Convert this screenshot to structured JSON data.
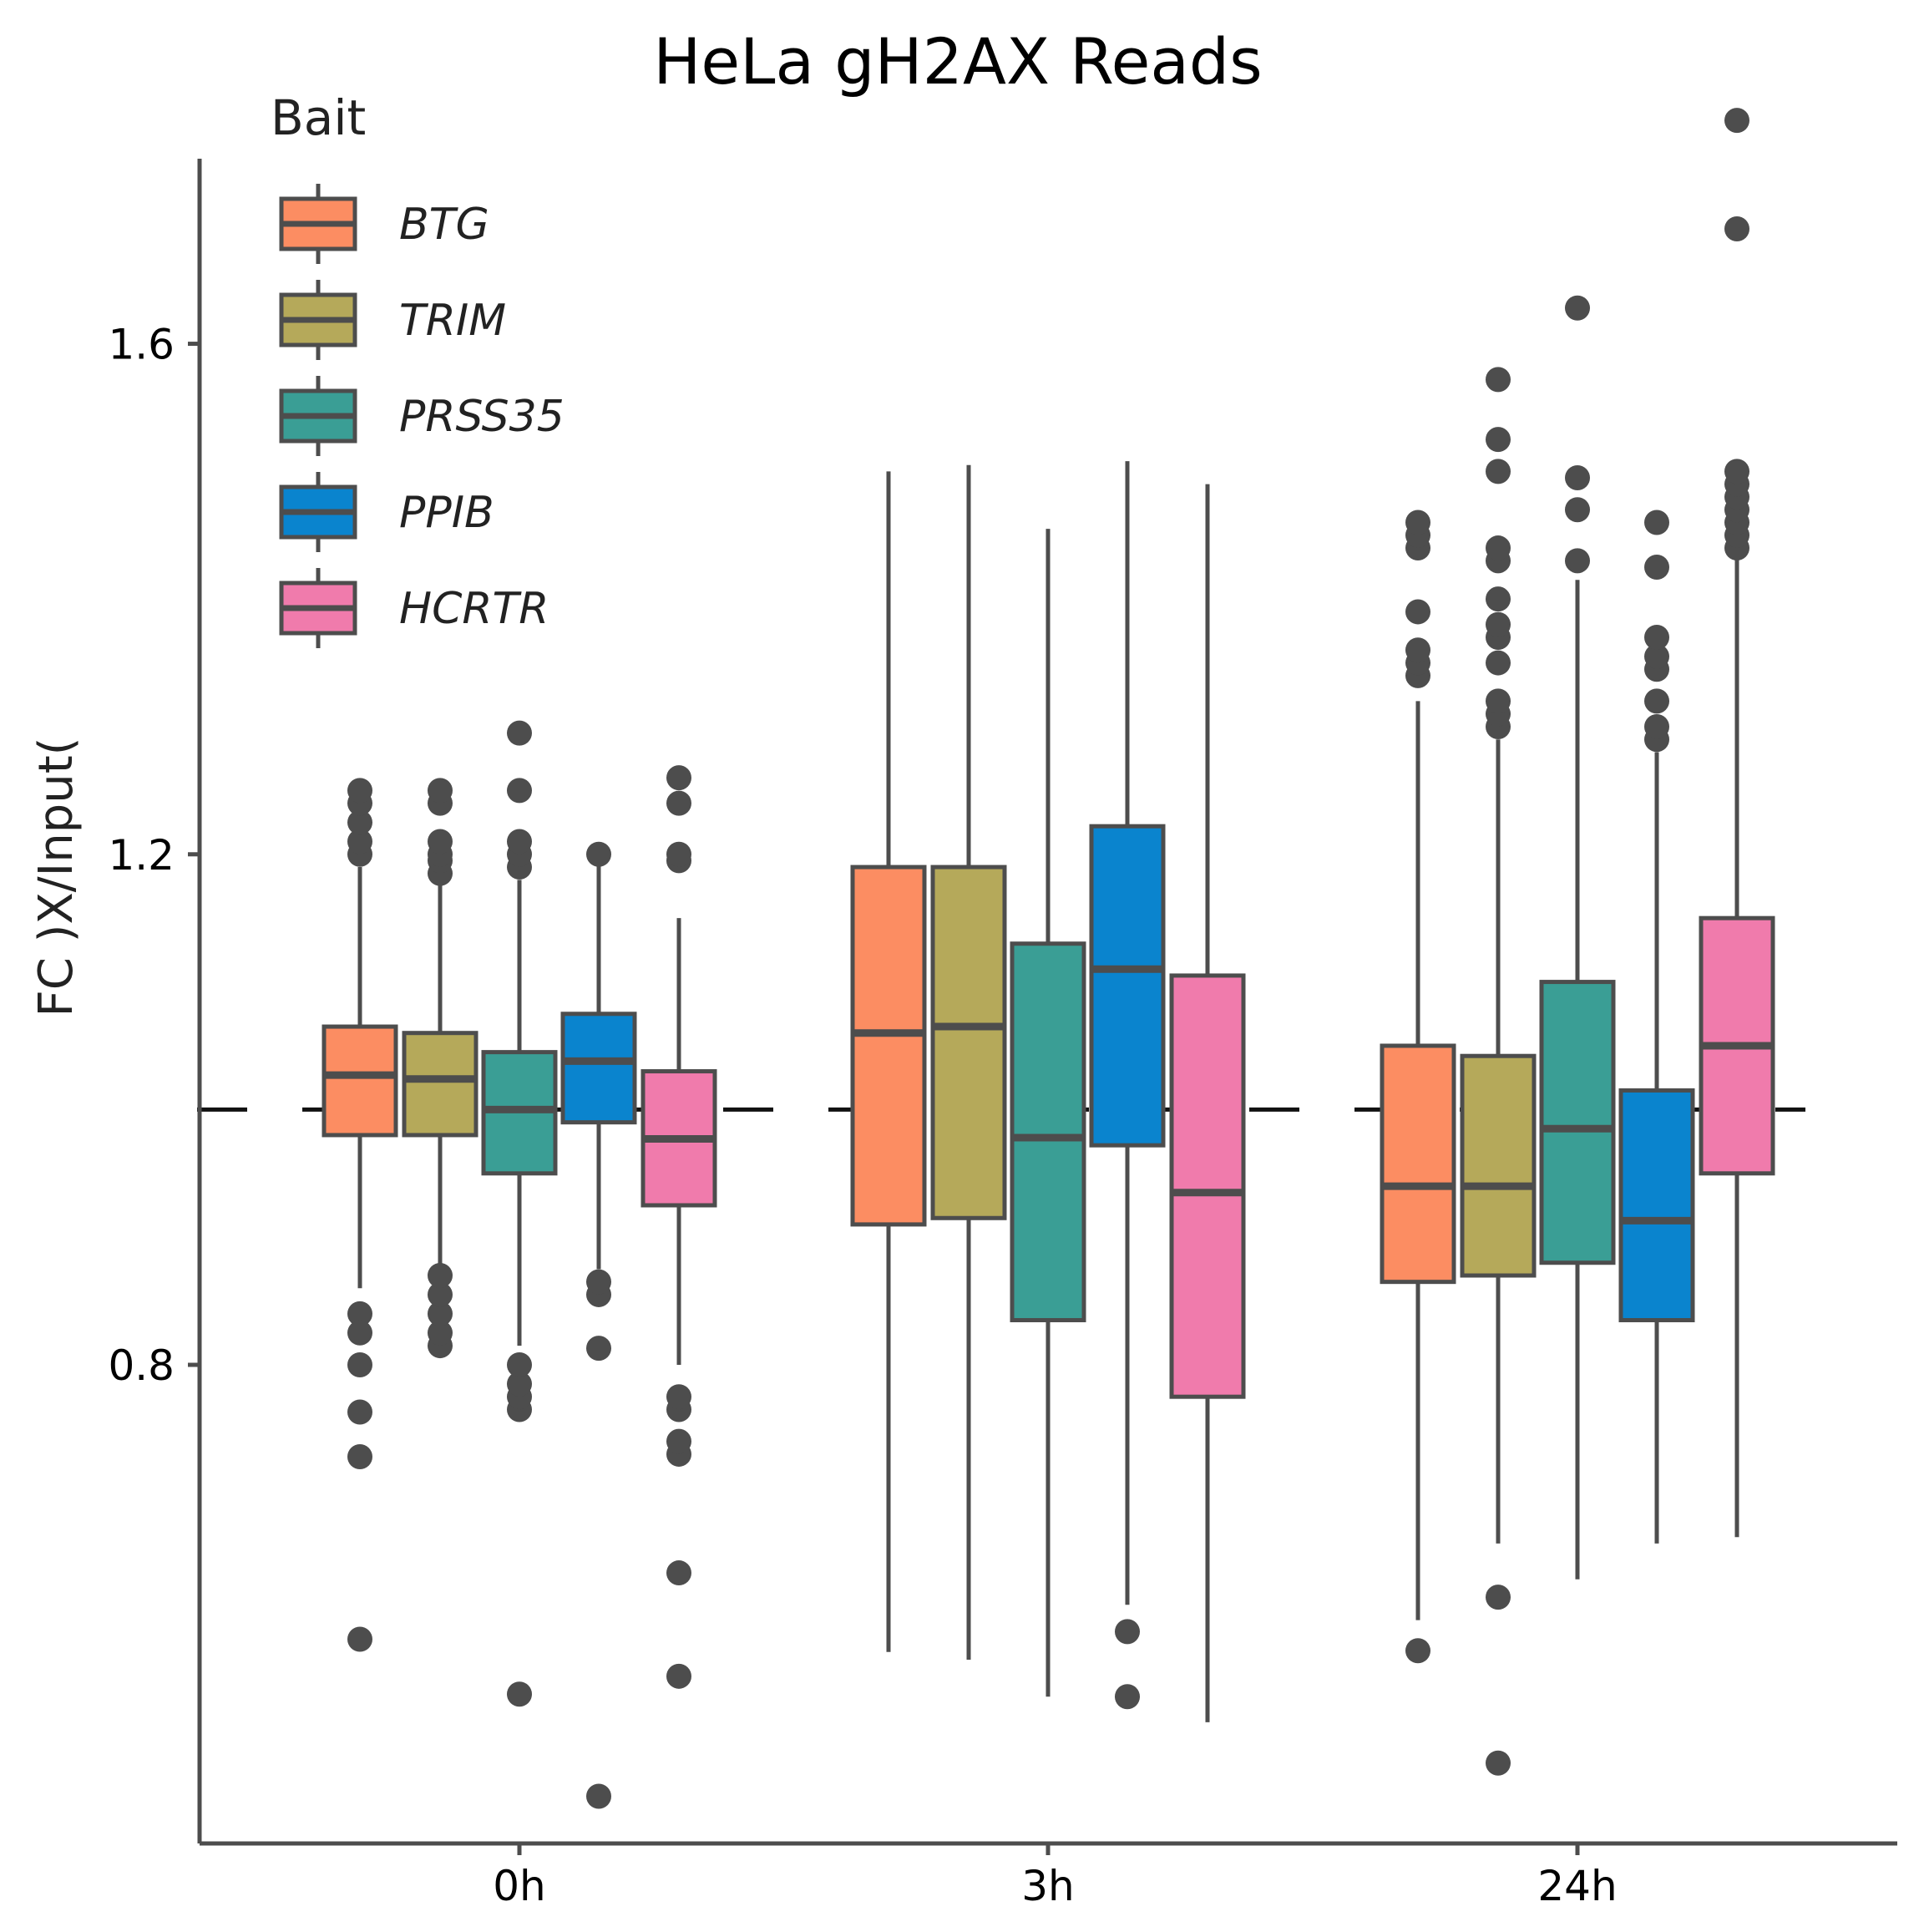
{
  "chart_data": {
    "type": "boxplot",
    "title": "HeLa gH2AX Reads",
    "xlabel": "",
    "ylabel": "FC )X/Input(",
    "ylim": [
      0.425,
      1.745
    ],
    "yticks": [
      0.8,
      1.2,
      1.6
    ],
    "ytick_labels": [
      "0.8",
      "1.2",
      "1.6"
    ],
    "reference_line": 1.0,
    "legend_title": "Bait",
    "legend_position": "top-left",
    "categories": [
      "0h",
      "3h",
      "24h"
    ],
    "series": [
      {
        "name": "BTG",
        "color": "#FC8D62",
        "boxes": [
          {
            "whisker_low": 0.86,
            "q1": 0.98,
            "median": 1.027,
            "q3": 1.065,
            "whisker_high": 1.19,
            "outliers": [
              0.84,
              0.825,
              0.8,
              0.763,
              0.728,
              0.585,
              1.2,
              1.21,
              1.225,
              1.24,
              1.25
            ]
          },
          {
            "whisker_low": 0.575,
            "q1": 0.91,
            "median": 1.06,
            "q3": 1.19,
            "whisker_high": 1.5,
            "outliers": []
          },
          {
            "whisker_low": 0.6,
            "q1": 0.865,
            "median": 0.94,
            "q3": 1.05,
            "whisker_high": 1.32,
            "outliers": [
              0.576,
              1.34,
              1.35,
              1.36,
              1.39,
              1.44,
              1.45,
              1.46
            ]
          }
        ]
      },
      {
        "name": "TRIM",
        "color": "#B5A95A",
        "boxes": [
          {
            "whisker_low": 0.87,
            "q1": 0.98,
            "median": 1.024,
            "q3": 1.06,
            "whisker_high": 1.18,
            "outliers": [
              0.815,
              0.825,
              0.84,
              0.855,
              0.87,
              1.185,
              1.195,
              1.2,
              1.21,
              1.24,
              1.25
            ]
          },
          {
            "whisker_low": 0.569,
            "q1": 0.915,
            "median": 1.065,
            "q3": 1.19,
            "whisker_high": 1.505,
            "outliers": []
          },
          {
            "whisker_low": 0.66,
            "q1": 0.87,
            "median": 0.94,
            "q3": 1.042,
            "whisker_high": 1.29,
            "outliers": [
              0.488,
              0.618,
              1.3,
              1.31,
              1.32,
              1.35,
              1.37,
              1.38,
              1.4,
              1.43,
              1.44,
              1.5,
              1.525,
              1.572
            ]
          }
        ]
      },
      {
        "name": "PRSS35",
        "color": "#3A9E95",
        "boxes": [
          {
            "whisker_low": 0.815,
            "q1": 0.95,
            "median": 1.0,
            "q3": 1.045,
            "whisker_high": 1.18,
            "outliers": [
              0.542,
              0.765,
              0.775,
              0.785,
              0.8,
              1.19,
              1.2,
              1.21,
              1.25,
              1.295
            ]
          },
          {
            "whisker_low": 0.54,
            "q1": 0.835,
            "median": 0.978,
            "q3": 1.13,
            "whisker_high": 1.455,
            "outliers": []
          },
          {
            "whisker_low": 0.632,
            "q1": 0.88,
            "median": 0.985,
            "q3": 1.1,
            "whisker_high": 1.415,
            "outliers": [
              1.43,
              1.47,
              1.495,
              1.628
            ]
          }
        ]
      },
      {
        "name": "PPIB",
        "color": "#0A84CE",
        "boxes": [
          {
            "whisker_low": 0.875,
            "q1": 0.99,
            "median": 1.038,
            "q3": 1.075,
            "whisker_high": 1.2,
            "outliers": [
              0.462,
              0.813,
              0.855,
              0.865,
              1.2
            ]
          },
          {
            "whisker_low": 0.612,
            "q1": 0.972,
            "median": 1.11,
            "q3": 1.222,
            "whisker_high": 1.508,
            "outliers": [
              0.54,
              0.591
            ]
          },
          {
            "whisker_low": 0.66,
            "q1": 0.835,
            "median": 0.913,
            "q3": 1.015,
            "whisker_high": 1.28,
            "outliers": [
              1.29,
              1.3,
              1.32,
              1.345,
              1.355,
              1.37,
              1.425,
              1.46
            ]
          }
        ]
      },
      {
        "name": "HCRTR",
        "color": "#F07BAC",
        "boxes": [
          {
            "whisker_low": 0.8,
            "q1": 0.925,
            "median": 0.977,
            "q3": 1.03,
            "whisker_high": 1.15,
            "outliers": [
              0.556,
              0.637,
              0.73,
              0.74,
              0.765,
              0.775,
              1.195,
              1.2,
              1.24,
              1.26
            ]
          },
          {
            "whisker_low": 0.52,
            "q1": 0.775,
            "median": 0.935,
            "q3": 1.105,
            "whisker_high": 1.49,
            "outliers": []
          },
          {
            "whisker_low": 0.665,
            "q1": 0.95,
            "median": 1.05,
            "q3": 1.15,
            "whisker_high": 1.435,
            "outliers": [
              1.44,
              1.45,
              1.46,
              1.47,
              1.48,
              1.49,
              1.5,
              1.69,
              1.775
            ]
          }
        ]
      }
    ]
  }
}
